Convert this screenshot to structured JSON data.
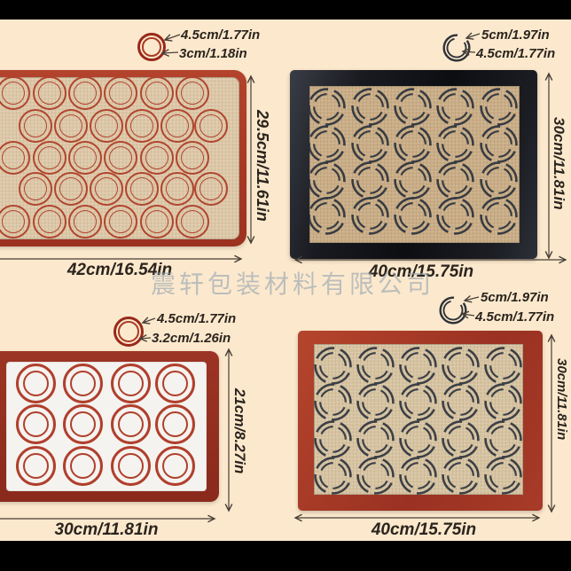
{
  "page": {
    "background_color": "#fce9cd",
    "watermark_text": "震轩包装材料有限公司"
  },
  "mats": {
    "top_left": {
      "annotation_outer": "4.5cm/1.77in",
      "annotation_inner": "3cm/1.18in",
      "width_label": "42cm/16.54in",
      "height_label": "29.5cm/11.61in",
      "grid": {
        "rows": 5,
        "cols": 6,
        "circle_style": "red-double-ring"
      },
      "colors": {
        "border": "#a63a28",
        "surface": "#dcc7a7",
        "circle": "#b0452e"
      }
    },
    "top_right": {
      "annotation_outer": "5cm/1.97in",
      "annotation_inner": "4.5cm/1.77in",
      "width_label": "40cm/15.75in",
      "height_label": "30cm/11.81in",
      "grid": {
        "rows": 4,
        "cols": 5,
        "circle_style": "dark-dashed-ring"
      },
      "colors": {
        "border": "#15161b",
        "surface": "#c9ad86",
        "circle": "#383c42"
      }
    },
    "bottom_left": {
      "annotation_outer": "4.5cm/1.77in",
      "annotation_inner": "3.2cm/1.26in",
      "width_label": "30cm/11.81in",
      "height_label": "21cm/8.27in",
      "grid": {
        "rows": 3,
        "cols": 4,
        "circle_style": "red-double-ring"
      },
      "colors": {
        "border": "#93301f",
        "surface": "#f5f3ef",
        "circle": "#b03f2d"
      }
    },
    "bottom_right": {
      "annotation_outer": "5cm/1.97in",
      "annotation_inner": "4.5cm/1.77in",
      "width_label": "40cm/15.75in",
      "height_label": "30cm/11.81in",
      "grid": {
        "rows": 4,
        "cols": 5,
        "circle_style": "dark-dashed-ring"
      },
      "colors": {
        "border": "#a83b28",
        "surface": "#d6c3a1",
        "circle": "#3c4046"
      }
    }
  }
}
